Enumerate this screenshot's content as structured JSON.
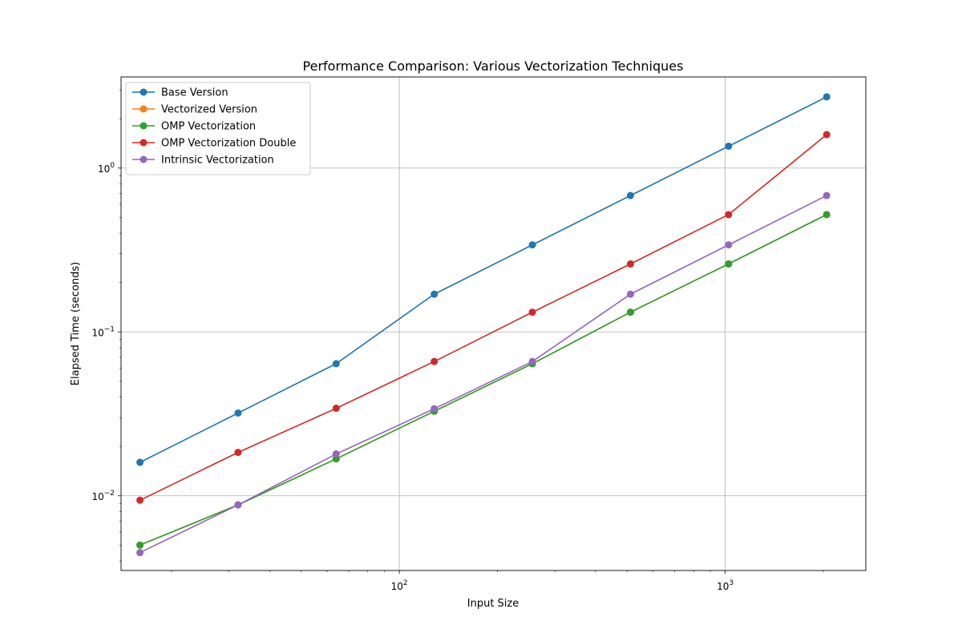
{
  "chart_data": {
    "type": "line",
    "title": "Performance Comparison: Various Vectorization Techniques",
    "xlabel": "Input Size",
    "ylabel": "Elapsed Time (seconds)",
    "x_scale": "log",
    "y_scale": "log",
    "xlim": [
      14,
      2700
    ],
    "ylim": [
      0.0035,
      3.6
    ],
    "x_tick_labels": [
      {
        "value": 100,
        "base": "10",
        "exp": "2"
      },
      {
        "value": 1000,
        "base": "10",
        "exp": "3"
      }
    ],
    "y_tick_labels": [
      {
        "value": 0.01,
        "base": "10",
        "exp": "−2"
      },
      {
        "value": 0.1,
        "base": "10",
        "exp": "−1"
      },
      {
        "value": 1,
        "base": "10",
        "exp": "0"
      }
    ],
    "grid": true,
    "legend_position": "top-left",
    "x": [
      16,
      32,
      64,
      128,
      256,
      512,
      1024,
      2048
    ],
    "series": [
      {
        "name": "Base Version",
        "color": "#1f77b4",
        "values": [
          0.016,
          0.032,
          0.064,
          0.17,
          0.34,
          0.68,
          1.36,
          2.72
        ]
      },
      {
        "name": "Vectorized Version",
        "color": "#ff7f0e",
        "values": [
          0.005,
          0.0088,
          0.0168,
          0.0328,
          0.064,
          0.132,
          0.26,
          0.52
        ]
      },
      {
        "name": "OMP Vectorization",
        "color": "#2ca02c",
        "values": [
          0.005,
          0.0088,
          0.0168,
          0.0328,
          0.064,
          0.132,
          0.26,
          0.52
        ]
      },
      {
        "name": "OMP Vectorization Double",
        "color": "#d62728",
        "values": [
          0.0094,
          0.0184,
          0.0342,
          0.066,
          0.132,
          0.26,
          0.52,
          1.6
        ]
      },
      {
        "name": "Intrinsic Vectorization",
        "color": "#9467bd",
        "values": [
          0.0045,
          0.0088,
          0.018,
          0.034,
          0.066,
          0.17,
          0.34,
          0.68
        ]
      }
    ]
  }
}
